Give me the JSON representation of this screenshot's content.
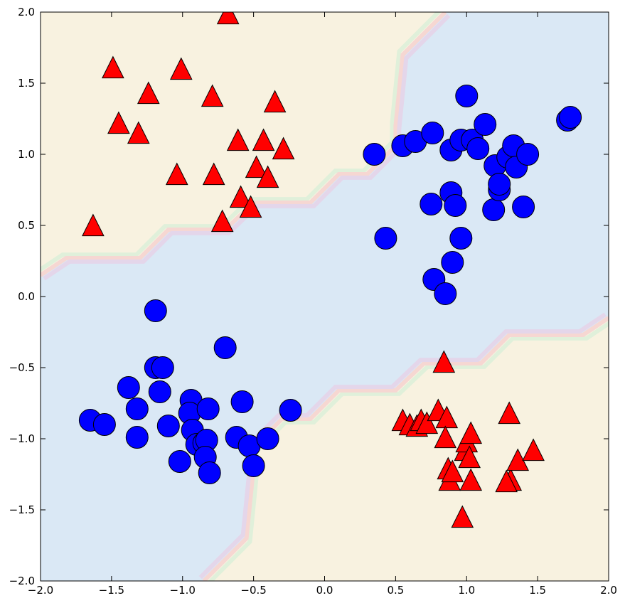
{
  "chart_data": {
    "type": "scatter",
    "title": "",
    "xlabel": "",
    "ylabel": "",
    "xlim": [
      -2,
      2
    ],
    "ylim": [
      -2,
      2
    ],
    "grid": false,
    "legend": "none",
    "x_ticks": [
      "−2.0",
      "−1.5",
      "−1.0",
      "−0.5",
      "0.0",
      "0.5",
      "1.0",
      "1.5",
      "2.0"
    ],
    "y_ticks": [
      "−2.0",
      "−1.5",
      "−1.0",
      "−0.5",
      "0.0",
      "0.5",
      "1.0",
      "1.5",
      "2.0"
    ],
    "background_regions": {
      "class_a_color": "#dae8f5",
      "class_b_color": "#f8f2e0",
      "contour_colors": [
        "#e0f0da",
        "#f6d7d2",
        "#e4d6ea"
      ]
    },
    "series": [
      {
        "marker": "circle",
        "color": "#0000ff",
        "points": [
          [
            -1.65,
            -0.87
          ],
          [
            -1.55,
            -0.9
          ],
          [
            -1.38,
            -0.64
          ],
          [
            -1.32,
            -0.79
          ],
          [
            -1.32,
            -0.99
          ],
          [
            -1.19,
            -0.1
          ],
          [
            -1.19,
            -0.5
          ],
          [
            -1.16,
            -0.67
          ],
          [
            -1.14,
            -0.5
          ],
          [
            -1.1,
            -0.91
          ],
          [
            -1.02,
            -1.16
          ],
          [
            -0.94,
            -0.73
          ],
          [
            -0.95,
            -0.82
          ],
          [
            -0.93,
            -0.94
          ],
          [
            -0.9,
            -1.04
          ],
          [
            -0.85,
            -1.03
          ],
          [
            -0.83,
            -1.01
          ],
          [
            -0.84,
            -1.13
          ],
          [
            -0.82,
            -0.79
          ],
          [
            -0.81,
            -1.24
          ],
          [
            -0.7,
            -0.36
          ],
          [
            -0.62,
            -0.99
          ],
          [
            -0.58,
            -0.74
          ],
          [
            -0.53,
            -1.05
          ],
          [
            -0.5,
            -1.19
          ],
          [
            -0.4,
            -1.0
          ],
          [
            -0.24,
            -0.8
          ],
          [
            0.35,
            1.0
          ],
          [
            0.43,
            0.41
          ],
          [
            0.55,
            1.06
          ],
          [
            0.64,
            1.09
          ],
          [
            0.75,
            0.65
          ],
          [
            0.76,
            1.15
          ],
          [
            0.77,
            0.12
          ],
          [
            0.85,
            0.02
          ],
          [
            0.89,
            0.73
          ],
          [
            0.9,
            0.24
          ],
          [
            0.92,
            0.64
          ],
          [
            0.96,
            0.41
          ],
          [
            0.89,
            1.03
          ],
          [
            0.96,
            1.1
          ],
          [
            1.0,
            1.41
          ],
          [
            1.04,
            1.1
          ],
          [
            1.08,
            1.04
          ],
          [
            1.13,
            1.21
          ],
          [
            1.19,
            0.61
          ],
          [
            1.2,
            0.92
          ],
          [
            1.23,
            0.75
          ],
          [
            1.23,
            0.79
          ],
          [
            1.29,
            0.98
          ],
          [
            1.33,
            1.06
          ],
          [
            1.35,
            0.91
          ],
          [
            1.4,
            0.63
          ],
          [
            1.43,
            1.0
          ],
          [
            1.71,
            1.24
          ],
          [
            1.73,
            1.26
          ]
        ]
      },
      {
        "marker": "triangle",
        "color": "#ff0000",
        "points": [
          [
            -1.63,
            0.49
          ],
          [
            -1.49,
            1.6
          ],
          [
            -1.45,
            1.21
          ],
          [
            -1.31,
            1.14
          ],
          [
            -1.24,
            1.42
          ],
          [
            -1.04,
            0.85
          ],
          [
            -1.01,
            1.59
          ],
          [
            -0.79,
            1.4
          ],
          [
            -0.78,
            0.85
          ],
          [
            -0.72,
            0.52
          ],
          [
            -0.68,
            1.98
          ],
          [
            -0.61,
            1.09
          ],
          [
            -0.59,
            0.69
          ],
          [
            -0.52,
            0.62
          ],
          [
            -0.48,
            0.9
          ],
          [
            -0.43,
            1.09
          ],
          [
            -0.4,
            0.83
          ],
          [
            -0.35,
            1.36
          ],
          [
            -0.29,
            1.03
          ],
          [
            0.55,
            -0.88
          ],
          [
            0.6,
            -0.91
          ],
          [
            0.65,
            -0.92
          ],
          [
            0.68,
            -0.88
          ],
          [
            0.72,
            -0.9
          ],
          [
            0.8,
            -0.81
          ],
          [
            0.84,
            -0.47
          ],
          [
            0.86,
            -0.86
          ],
          [
            0.85,
            -1.0
          ],
          [
            0.87,
            -1.22
          ],
          [
            0.88,
            -1.3
          ],
          [
            0.9,
            -1.24
          ],
          [
            0.97,
            -1.56
          ],
          [
            0.99,
            -1.09
          ],
          [
            1.0,
            -1.03
          ],
          [
            1.02,
            -1.14
          ],
          [
            1.03,
            -0.97
          ],
          [
            1.03,
            -1.3
          ],
          [
            1.3,
            -0.83
          ],
          [
            1.31,
            -1.3
          ],
          [
            1.28,
            -1.31
          ],
          [
            1.36,
            -1.16
          ],
          [
            1.47,
            -1.09
          ]
        ]
      }
    ]
  }
}
